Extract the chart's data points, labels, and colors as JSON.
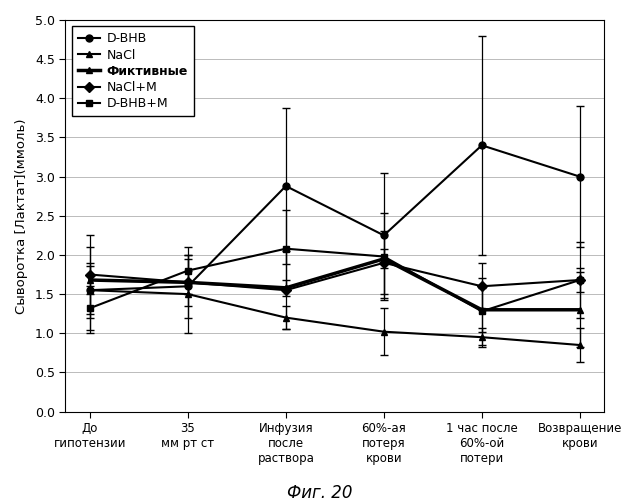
{
  "title": "Фиг. 20",
  "ylabel": "Сыворотка [Лактат](ммоль)",
  "xlabels": [
    "До\nгипотензии",
    "35\nмм рт ст",
    "Инфузия\nпосле\nраствора",
    "60%-ая\nпотеря\nкрови",
    "1 час после\n60%-ой\nпотери",
    "Возвращение\nкрови"
  ],
  "ylim": [
    0,
    5
  ],
  "yticks": [
    0,
    0.5,
    1.0,
    1.5,
    2.0,
    2.5,
    3.0,
    3.5,
    4.0,
    4.5,
    5.0
  ],
  "series": [
    {
      "label": "D-BHB",
      "marker": "o",
      "color": "#000000",
      "linewidth": 1.5,
      "markersize": 5,
      "bold_legend": false,
      "y": [
        1.55,
        1.6,
        2.88,
        2.25,
        3.4,
        3.0
      ],
      "yerr": [
        0.35,
        0.4,
        1.0,
        0.8,
        1.4,
        0.9
      ]
    },
    {
      "label": "NaCl",
      "marker": "^",
      "color": "#000000",
      "linewidth": 1.5,
      "markersize": 5,
      "bold_legend": false,
      "y": [
        1.55,
        1.5,
        1.2,
        1.02,
        0.95,
        0.85
      ],
      "yerr": [
        0.55,
        0.5,
        0.15,
        0.3,
        0.12,
        0.22
      ]
    },
    {
      "label": "Фиктивные",
      "marker": "^",
      "color": "#000000",
      "linewidth": 2.5,
      "markersize": 5,
      "bold_legend": true,
      "y": [
        1.68,
        1.65,
        1.58,
        1.95,
        1.3,
        1.3
      ],
      "yerr": [
        0.18,
        0.15,
        0.1,
        0.12,
        0.28,
        0.48
      ]
    },
    {
      "label": "NaCl+M",
      "marker": "D",
      "color": "#000000",
      "linewidth": 1.5,
      "markersize": 5,
      "bold_legend": false,
      "y": [
        1.75,
        1.65,
        1.55,
        1.9,
        1.6,
        1.68
      ],
      "yerr": [
        0.5,
        0.3,
        0.5,
        0.4,
        0.3,
        0.15
      ]
    },
    {
      "label": "D-BHB+M",
      "marker": "s",
      "color": "#000000",
      "linewidth": 1.5,
      "markersize": 5,
      "bold_legend": false,
      "y": [
        1.32,
        1.8,
        2.08,
        1.98,
        1.28,
        1.68
      ],
      "yerr": [
        0.28,
        0.3,
        0.5,
        0.55,
        0.43,
        0.48
      ]
    }
  ],
  "background_color": "#ffffff",
  "grid_color": "#bbbbbb",
  "figsize": [
    6.39,
    5.0
  ],
  "dpi": 100
}
